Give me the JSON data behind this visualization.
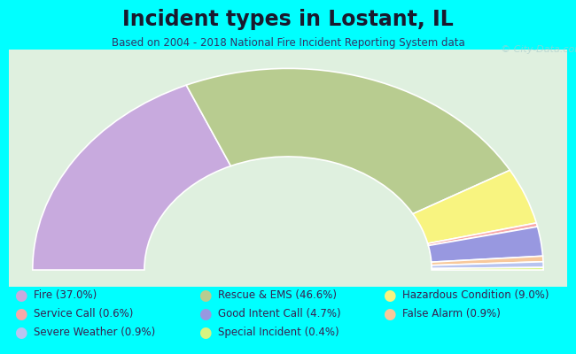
{
  "title": "Incident types in Lostant, IL",
  "subtitle": "Based on 2004 - 2018 National Fire Incident Reporting System data",
  "background_color": "#00FFFF",
  "chart_bg_color": "#dff0df",
  "watermark": "City-Data.com",
  "segments": [
    {
      "label": "Fire",
      "pct": 37.0,
      "color": "#c8aade"
    },
    {
      "label": "Rescue & EMS",
      "pct": 46.6,
      "color": "#b8cc90"
    },
    {
      "label": "Hazardous Condition",
      "pct": 9.0,
      "color": "#f8f480"
    },
    {
      "label": "Service Call",
      "pct": 0.6,
      "color": "#f8a8a8"
    },
    {
      "label": "Good Intent Call",
      "pct": 4.7,
      "color": "#9898e0"
    },
    {
      "label": "False Alarm",
      "pct": 0.9,
      "color": "#f8c89a"
    },
    {
      "label": "Severe Weather",
      "pct": 0.9,
      "color": "#b8c4f0"
    },
    {
      "label": "Special Incident",
      "pct": 0.4,
      "color": "#d8f480"
    }
  ],
  "legend_items": [
    {
      "label": "Fire (37.0%)",
      "color": "#c8aade"
    },
    {
      "label": "Service Call (0.6%)",
      "color": "#f8a8a8"
    },
    {
      "label": "Severe Weather (0.9%)",
      "color": "#b8c4f0"
    },
    {
      "label": "Rescue & EMS (46.6%)",
      "color": "#b8cc90"
    },
    {
      "label": "Good Intent Call (4.7%)",
      "color": "#9898e0"
    },
    {
      "label": "Special Incident (0.4%)",
      "color": "#d8f480"
    },
    {
      "label": "Hazardous Condition (9.0%)",
      "color": "#f8f480"
    },
    {
      "label": "False Alarm (0.9%)",
      "color": "#f8c89a"
    }
  ],
  "title_fontsize": 17,
  "subtitle_fontsize": 8.5,
  "legend_fontsize": 8.5
}
